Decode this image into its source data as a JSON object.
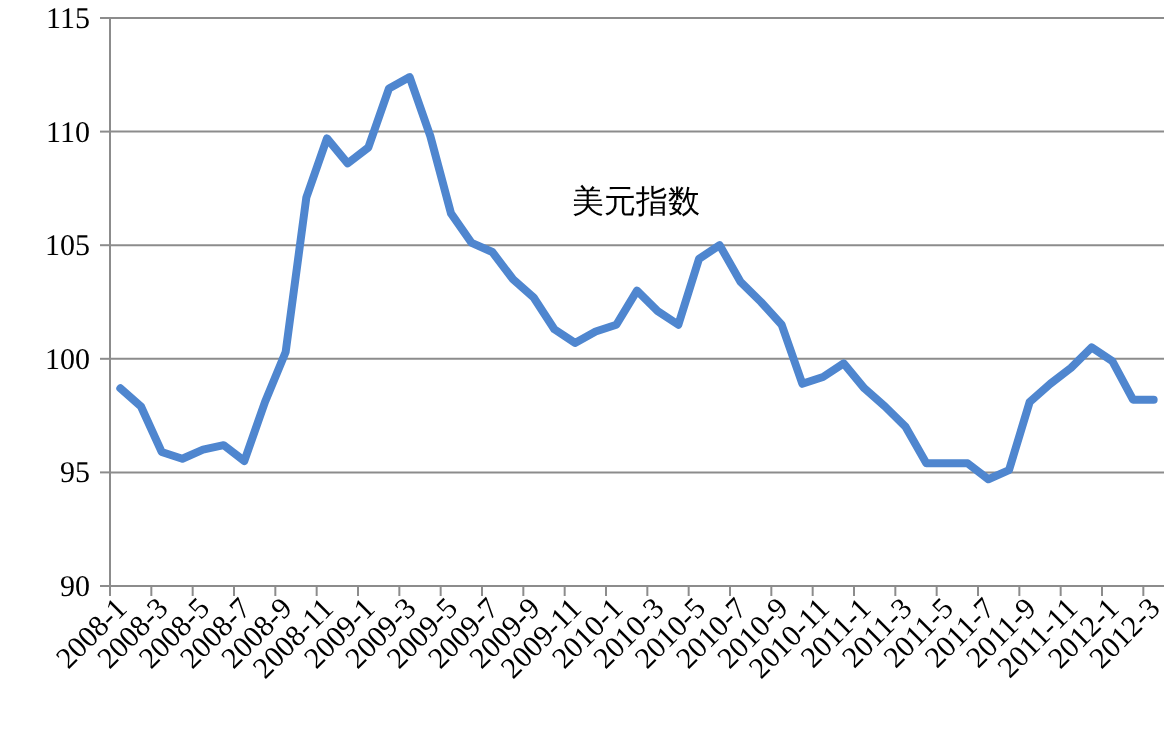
{
  "chart_data": {
    "type": "line",
    "title": "美元指数",
    "categories": [
      "2008-1",
      null,
      "2008-3",
      null,
      "2008-5",
      null,
      "2008-7",
      null,
      "2008-9",
      null,
      "2008-11",
      null,
      "2009-1",
      null,
      "2009-3",
      null,
      "2009-5",
      null,
      "2009-7",
      null,
      "2009-9",
      null,
      "2009-11",
      null,
      "2010-1",
      null,
      "2010-3",
      null,
      "2010-5",
      null,
      "2010-7",
      null,
      "2010-9",
      null,
      "2010-11",
      null,
      "2011-1",
      null,
      "2011-3",
      null,
      "2011-5",
      null,
      "2011-7",
      null,
      "2011-9",
      null,
      "2011-11",
      null,
      "2012-1",
      null,
      "2012-3"
    ],
    "series": [
      {
        "color": "#4f86cf",
        "values": [
          98.7,
          97.9,
          95.9,
          95.6,
          96.0,
          96.2,
          95.5,
          98.1,
          100.3,
          107.1,
          109.7,
          108.6,
          109.3,
          111.9,
          112.4,
          109.8,
          106.4,
          105.1,
          104.7,
          103.5,
          102.7,
          101.3,
          100.7,
          101.2,
          101.5,
          103.0,
          102.1,
          101.5,
          104.4,
          105.0,
          103.4,
          102.5,
          101.5,
          98.9,
          99.2,
          99.8,
          98.7,
          97.9,
          97.0,
          95.4,
          95.4,
          95.4,
          94.7,
          95.1,
          98.1,
          98.9,
          99.6,
          100.5,
          99.9,
          98.2,
          98.2
        ]
      }
    ],
    "ylim": [
      90,
      115
    ],
    "yticks": [
      90,
      95,
      100,
      105,
      110,
      115
    ],
    "grid": "y",
    "marker": "none",
    "line_style": "solid"
  }
}
